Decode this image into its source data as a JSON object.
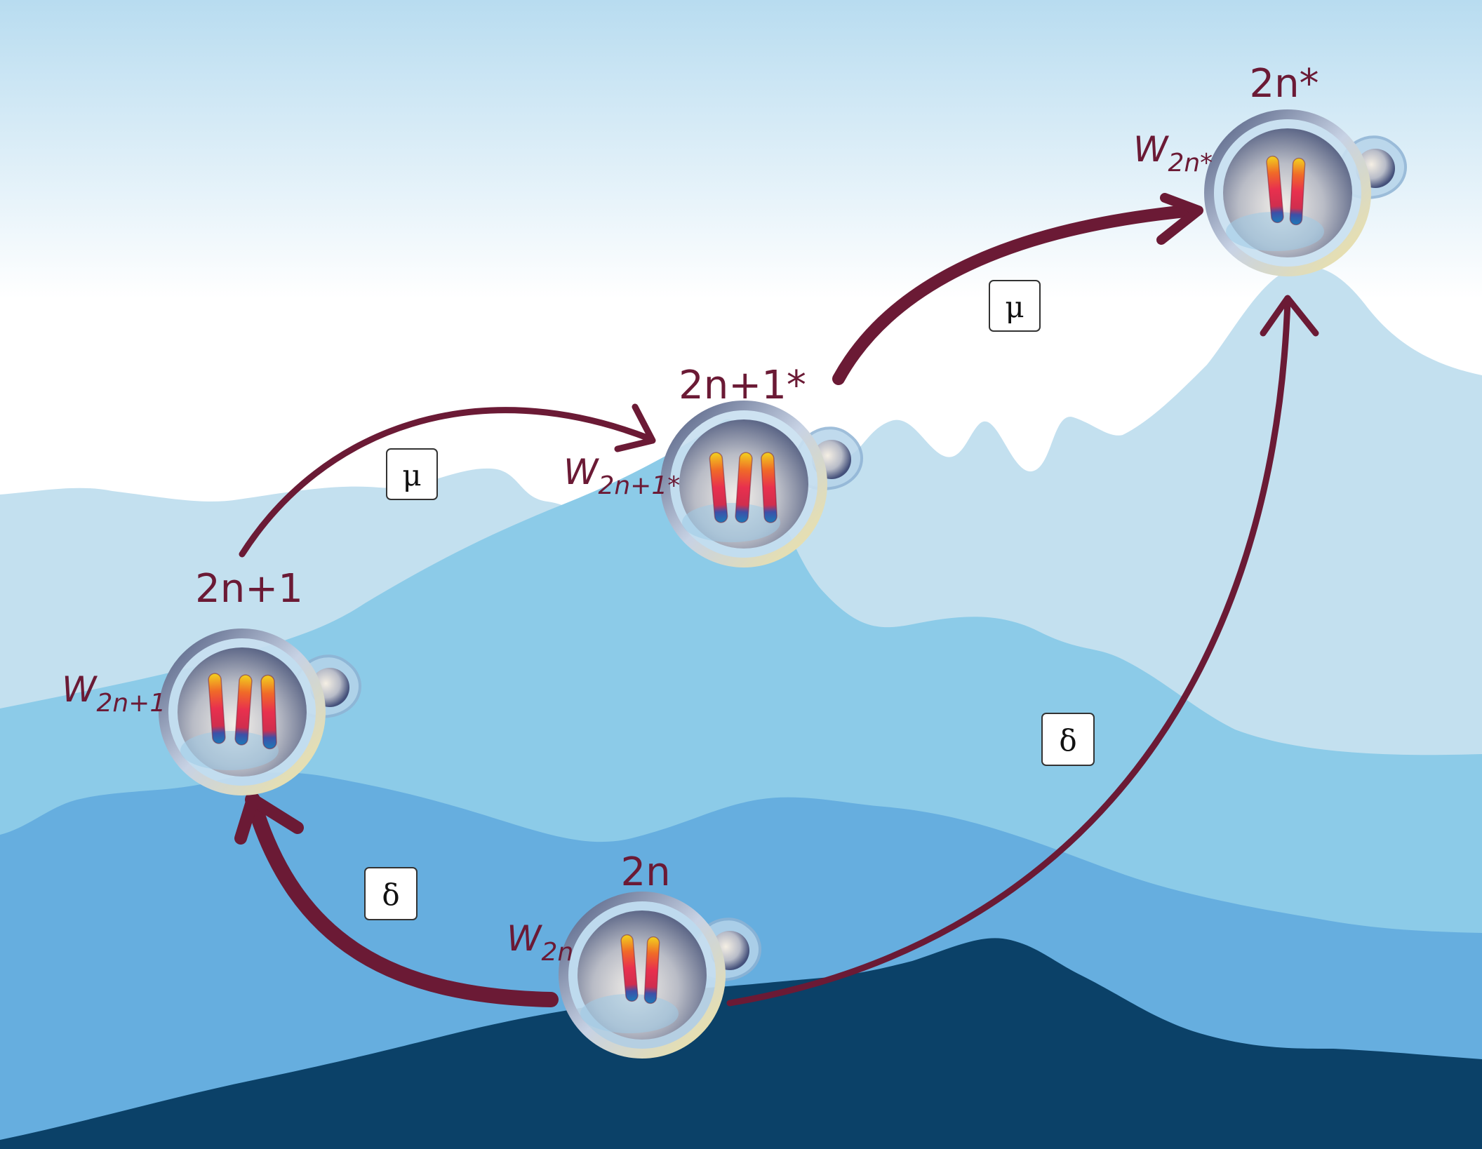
{
  "states": {
    "diploid": {
      "label": "2n",
      "fitness": "W",
      "fitness_sub": "2n"
    },
    "trisomic": {
      "label": "2n+1",
      "fitness": "W",
      "fitness_sub": "2n+1"
    },
    "trisomic_mutant": {
      "label": "2n+1*",
      "fitness": "W",
      "fitness_sub": "2n+1*"
    },
    "diploid_mutant": {
      "label": "2n*",
      "fitness": "W",
      "fitness_sub": "2n*"
    }
  },
  "transitions": [
    {
      "from": "2n",
      "to": "2n+1",
      "rate": "δ"
    },
    {
      "from": "2n+1",
      "to": "2n+1*",
      "rate": "μ"
    },
    {
      "from": "2n+1*",
      "to": "2n*",
      "rate": "μ"
    },
    {
      "from": "2n",
      "to": "2n*",
      "rate": "δ"
    }
  ],
  "colors": {
    "arrow": "#6b1a35",
    "sky_top": "#b8dcf0",
    "mountain_far": "#c3e0ef",
    "mountain_mid": "#8ccbe8",
    "mountain_near": "#66aedf",
    "mountain_front": "#0b4168"
  }
}
